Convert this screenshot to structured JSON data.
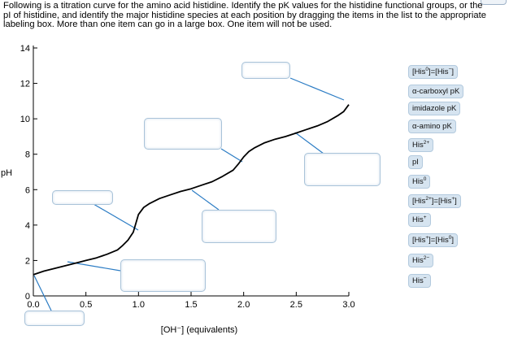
{
  "instructions": "Following is a titration curve for the amino acid histidine. Identify the pK values for the histidine functional groups, or the pI of histidine, and identify the major histidine species at each position by dragging the items in the list to the appropriate labeling box. More than one item can go in a large box. One item will not be used.",
  "drag_items": [
    {
      "base": "[His",
      "sup": "0",
      "mid": "]=[His",
      "sup2": "−",
      "end": "]"
    },
    {
      "base": "α-carboxyl pK"
    },
    {
      "base": "imidazole pK"
    },
    {
      "base": "α-amino pK"
    },
    {
      "base": "His",
      "sup": "2+"
    },
    {
      "base": "pI"
    },
    {
      "base": "His",
      "sup": "0"
    },
    {
      "base": "[His",
      "sup": "2+",
      "mid": "]=[His",
      "sup2": "+",
      "end": "]"
    },
    {
      "base": "His",
      "sup": "+"
    },
    {
      "base": "[His",
      "sup": "+",
      "mid": "]=[His",
      "sup2": "0",
      "end": "]"
    },
    {
      "base": "His",
      "sup": "2−"
    },
    {
      "base": "His",
      "sup": "−"
    }
  ],
  "chart_data": {
    "type": "line",
    "xlabel": "[OH⁻] (equivalents)",
    "ylabel": "pH",
    "xlim": [
      0,
      3.0
    ],
    "ylim": [
      0,
      14
    ],
    "x_ticks": [
      "0.0",
      "0.5",
      "1.0",
      "1.5",
      "2.0",
      "2.5",
      "3.0"
    ],
    "y_ticks": [
      "0",
      "2",
      "4",
      "6",
      "8",
      "10",
      "12",
      "14"
    ],
    "series": [
      {
        "x": [
          0.0,
          0.1,
          0.2,
          0.3,
          0.4,
          0.5,
          0.6,
          0.7,
          0.8,
          0.85,
          0.9,
          0.95,
          1.0,
          1.05,
          1.1,
          1.2,
          1.3,
          1.4,
          1.5,
          1.6,
          1.7,
          1.8,
          1.9,
          1.95,
          2.0,
          2.05,
          2.1,
          2.2,
          2.3,
          2.4,
          2.5,
          2.6,
          2.7,
          2.8,
          2.9,
          2.95,
          3.0
        ],
        "y": [
          1.2,
          1.4,
          1.55,
          1.7,
          1.85,
          2.0,
          2.15,
          2.35,
          2.6,
          2.85,
          3.15,
          3.6,
          4.6,
          5.0,
          5.2,
          5.5,
          5.7,
          5.9,
          6.05,
          6.25,
          6.45,
          6.75,
          7.1,
          7.45,
          7.85,
          8.15,
          8.35,
          8.65,
          8.85,
          9.0,
          9.2,
          9.4,
          9.6,
          9.85,
          10.2,
          10.4,
          10.8
        ]
      }
    ]
  }
}
